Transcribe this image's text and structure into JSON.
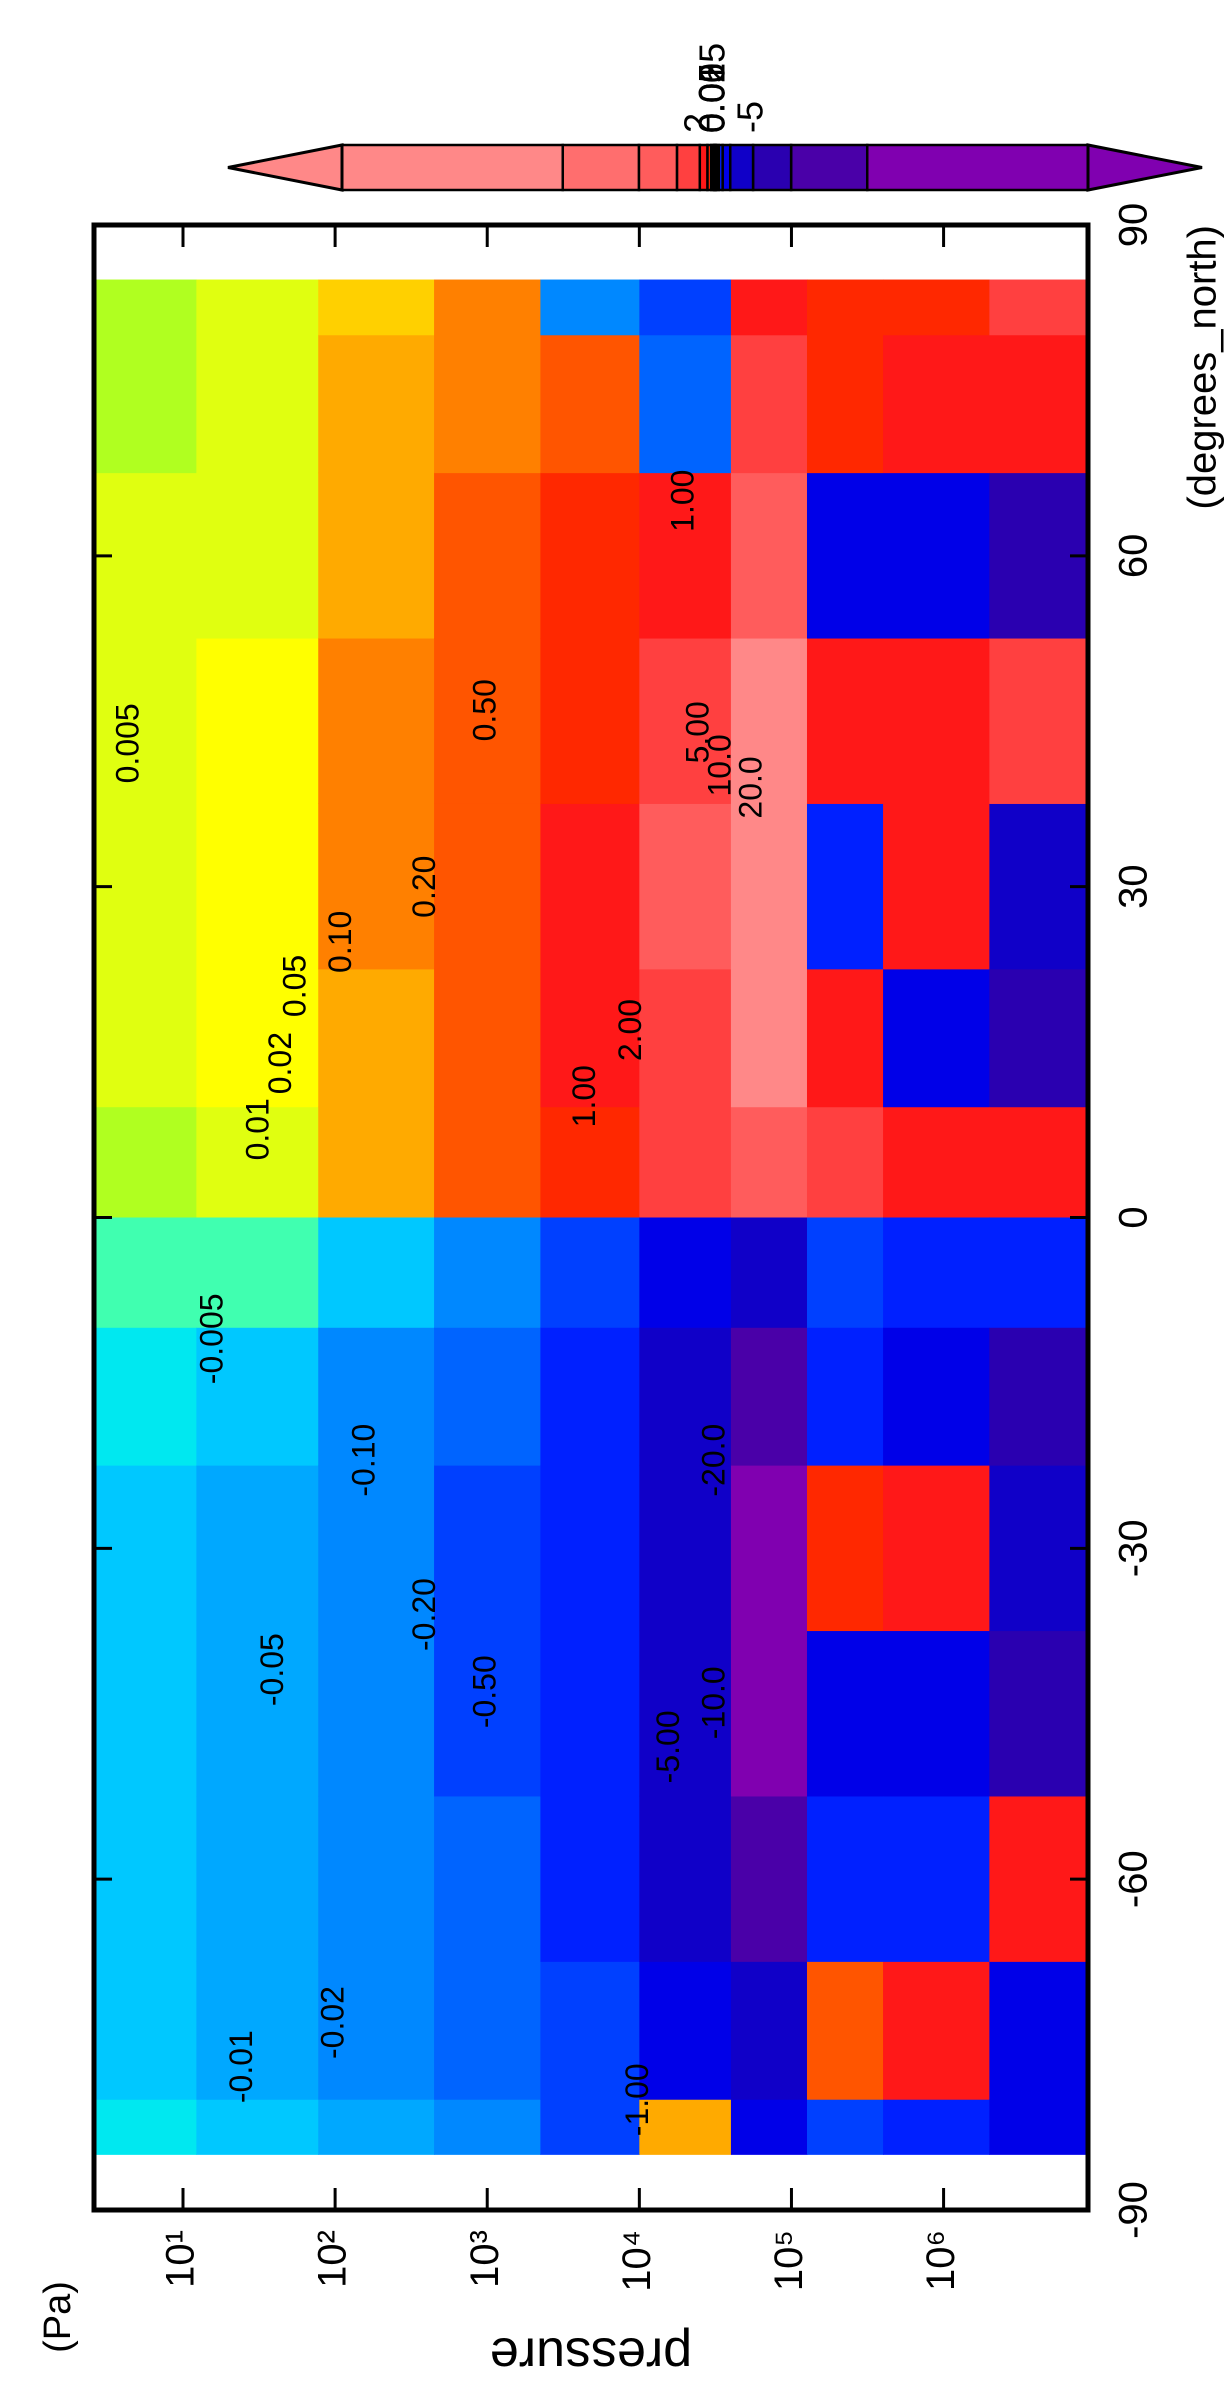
{
  "chart_data": {
    "type": "contour",
    "x_label": "(degrees_north)",
    "y_label": "pressure",
    "y_unit": "(Pa)",
    "xlim": [
      -90,
      90
    ],
    "xticks": [
      -90,
      -60,
      -30,
      0,
      30,
      60,
      90
    ],
    "ylim": [
      2.6,
      8900000
    ],
    "y_log": true,
    "y_inverted": true,
    "yticks": [
      {
        "value": 10,
        "label": "10¹"
      },
      {
        "value": 100,
        "label": "10²"
      },
      {
        "value": 1000,
        "label": "10³"
      },
      {
        "value": 10000,
        "label": "10⁴"
      },
      {
        "value": 100000,
        "label": "10⁵"
      },
      {
        "value": 1000000,
        "label": "10⁶"
      }
    ],
    "x": [
      -85,
      -75,
      -60,
      -45,
      -30,
      -15,
      -5,
      5,
      15,
      30,
      45,
      60,
      75,
      85
    ],
    "y": [
      5,
      30,
      200,
      1000,
      5000,
      20000,
      80000,
      200000,
      800000,
      5000000
    ],
    "z": [
      [
        -0.008,
        -0.012,
        -0.015,
        -0.015,
        -0.013,
        -0.01,
        -0.003,
        0.003,
        0.006,
        0.007,
        0.007,
        0.005,
        0.004,
        0.003
      ],
      [
        -0.015,
        -0.025,
        -0.04,
        -0.04,
        -0.035,
        -0.02,
        -0.005,
        0.008,
        0.015,
        0.012,
        0.01,
        0.008,
        0.006,
        0.005
      ],
      [
        -0.03,
        -0.06,
        -0.08,
        -0.09,
        -0.09,
        -0.07,
        -0.02,
        0.06,
        0.08,
        0.12,
        0.1,
        0.07,
        0.05,
        0.04
      ],
      [
        -0.1,
        -0.15,
        -0.2,
        -0.25,
        -0.25,
        -0.2,
        -0.1,
        0.2,
        0.3,
        0.3,
        0.3,
        0.2,
        0.15,
        0.12
      ],
      [
        -0.3,
        -0.5,
        -0.8,
        -1.0,
        -1.0,
        -0.8,
        -0.4,
        0.8,
        1.2,
        1.0,
        0.8,
        0.6,
        0.3,
        -0.1
      ],
      [
        0.05,
        -1.5,
        -3,
        -5,
        -5,
        -4,
        -2,
        3,
        4,
        5,
        3,
        1,
        -0.2,
        -0.5
      ],
      [
        -1.5,
        -5,
        -15,
        -25,
        -22,
        -15,
        -5,
        8,
        20,
        25,
        25,
        8,
        2,
        1.5
      ],
      [
        -0.5,
        0.3,
        -1,
        -2,
        0.5,
        -1,
        -0.3,
        2,
        1,
        -0.8,
        1,
        -1.5,
        0.8,
        0.6
      ],
      [
        -0.8,
        1.2,
        -0.8,
        -1.2,
        1.5,
        -1.5,
        -0.6,
        1.2,
        -2,
        1.5,
        1.8,
        -2,
        1.5,
        0.8
      ],
      [
        -1.5,
        -2,
        1.5,
        -8,
        -3,
        -6,
        -0.8,
        1,
        -8,
        -3,
        2,
        -6,
        1.5,
        2
      ]
    ],
    "levels": [
      -20,
      -10,
      -5,
      -2,
      -1,
      -0.5,
      -0.2,
      -0.1,
      -0.05,
      -0.02,
      -0.01,
      -0.005,
      0,
      0.005,
      0.01,
      0.02,
      0.05,
      0.1,
      0.2,
      0.5,
      1,
      2,
      5,
      10,
      20
    ],
    "colors": [
      "#8000b0",
      "#4a00a8",
      "#2a00b0",
      "#1000c8",
      "#0000e8",
      "#0020ff",
      "#0040ff",
      "#0064ff",
      "#0088ff",
      "#00a8ff",
      "#00c8ff",
      "#00e8f0",
      "#40ffb0",
      "#b0ff20",
      "#e0ff10",
      "#ffff00",
      "#ffd000",
      "#ffaa00",
      "#ff8000",
      "#ff5500",
      "#ff2800",
      "#ff1818",
      "#ff4040",
      "#ff5c5c",
      "#ff6e6e",
      "#ff8888"
    ],
    "clim": [
      -49,
      49
    ],
    "cbar_ticks": [
      2,
      0.05,
      0.02,
      0.01,
      0.005,
      -5
    ],
    "contour_labels": [
      "0.005",
      "0.05",
      "0.10",
      "0.20",
      "0.50",
      "1.00",
      "1.00",
      "2.00",
      "5.00",
      "10.0",
      "20.0",
      "0.01",
      "0.02",
      "-0.005",
      "-0.01",
      "-0.02",
      "-0.05",
      "-0.10",
      "-0.20",
      "-0.50",
      "-1.00",
      "-5.00",
      "-10.0",
      "-20.0"
    ]
  }
}
